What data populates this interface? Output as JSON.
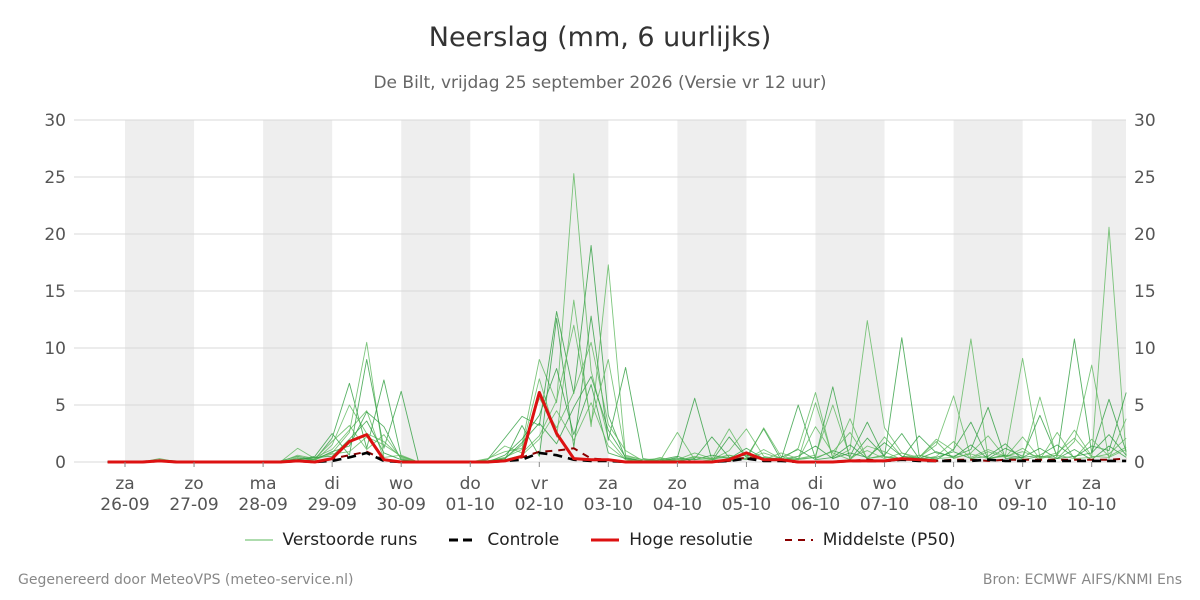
{
  "header": {
    "title": "Neerslag (mm, 6 uurlijks)",
    "subtitle": "De Bilt, vrijdag 25 september 2026 (Versie vr 12 uur)"
  },
  "footer": {
    "left": "Gegenereerd door MeteoVPS (meteo-service.nl)",
    "right": "Bron: ECMWF AIFS/KNMI Ens"
  },
  "legend": [
    {
      "label": "Verstoorde runs",
      "color": "#5cb85c",
      "style": "thin"
    },
    {
      "label": "Controle",
      "color": "#000000",
      "style": "dashed"
    },
    {
      "label": "Hoge resolutie",
      "color": "#dd1111",
      "style": "solid"
    },
    {
      "label": "Middelste (P50)",
      "color": "#8b0000",
      "style": "dashed"
    }
  ],
  "chart_data": {
    "type": "line",
    "title": "Neerslag (mm, 6 uurlijks)",
    "ylim": [
      0,
      30
    ],
    "yticks": [
      0,
      5,
      10,
      15,
      20,
      25,
      30
    ],
    "y_axis_both_sides": true,
    "x_axis": {
      "start": "2026-09-26 00:00",
      "end": "2026-10-11 00:00",
      "step_hours": 6,
      "tick_labels": [
        {
          "day": "za",
          "date": "26-09"
        },
        {
          "day": "zo",
          "date": "27-09"
        },
        {
          "day": "ma",
          "date": "28-09"
        },
        {
          "day": "di",
          "date": "29-09"
        },
        {
          "day": "wo",
          "date": "30-09"
        },
        {
          "day": "do",
          "date": "01-10"
        },
        {
          "day": "vr",
          "date": "02-10"
        },
        {
          "day": "za",
          "date": "03-10"
        },
        {
          "day": "zo",
          "date": "04-10"
        },
        {
          "day": "ma",
          "date": "05-10"
        },
        {
          "day": "di",
          "date": "06-10"
        },
        {
          "day": "wo",
          "date": "07-10"
        },
        {
          "day": "do",
          "date": "08-10"
        },
        {
          "day": "vr",
          "date": "09-10"
        },
        {
          "day": "za",
          "date": "10-10"
        }
      ],
      "shaded_days": [
        "2026-09-26",
        "2026-09-28",
        "2026-09-30",
        "2026-10-02",
        "2026-10-04",
        "2026-10-06",
        "2026-10-08",
        "2026-10-10"
      ]
    },
    "grid": true,
    "legend_position": "bottom",
    "series": [
      {
        "name": "Hoge resolutie",
        "role": "hres",
        "start": "2026-09-25 18:00",
        "values": [
          0,
          0,
          0,
          0.1,
          0,
          0,
          0,
          0,
          0,
          0,
          0,
          0.1,
          0,
          0.3,
          1.8,
          2.4,
          0.2,
          0,
          0,
          0,
          0,
          0,
          0,
          0.1,
          0.5,
          6.1,
          2.5,
          0.3,
          0.2,
          0.2,
          0,
          0,
          0,
          0,
          0,
          0,
          0.2,
          0.8,
          0.2,
          0.2,
          0,
          0,
          0,
          0.1,
          0.1,
          0.1,
          0.3,
          0.2,
          0.1
        ]
      },
      {
        "name": "Controle",
        "role": "control",
        "start": "2026-09-25 18:00",
        "values": [
          0,
          0,
          0,
          0.1,
          0,
          0,
          0,
          0,
          0,
          0,
          0,
          0.1,
          0,
          0.1,
          0.4,
          0.8,
          0.1,
          0,
          0,
          0,
          0,
          0,
          0,
          0.1,
          0.2,
          0.8,
          0.6,
          0.2,
          0.1,
          0.1,
          0,
          0,
          0,
          0,
          0,
          0,
          0.1,
          0.3,
          0.1,
          0.1,
          0,
          0,
          0,
          0.1,
          0.1,
          0.1,
          0.2,
          0.1,
          0.1,
          0.1,
          0.1,
          0.2,
          0.1,
          0.1,
          0.1,
          0.1,
          0.1,
          0.1,
          0.1,
          0.1,
          0.1
        ]
      },
      {
        "name": "Middelste (P50)",
        "role": "median",
        "start": "2026-09-25 18:00",
        "values": [
          0,
          0,
          0,
          0.1,
          0,
          0,
          0,
          0,
          0,
          0,
          0,
          0.1,
          0,
          0.3,
          0.6,
          0.9,
          0.2,
          0,
          0,
          0,
          0,
          0,
          0,
          0.1,
          0.4,
          0.9,
          1.0,
          1.2,
          0.3,
          0.2,
          0,
          0,
          0,
          0,
          0,
          0,
          0.1,
          0.4,
          0.2,
          0.2,
          0,
          0,
          0,
          0.1,
          0.2,
          0.1,
          0.2,
          0.2,
          0.1,
          0.2,
          0.2,
          0.1,
          0.2,
          0.2,
          0.2,
          0.2,
          0.2,
          0.2,
          0.2,
          0.3,
          0.2
        ]
      },
      {
        "name": "Verstoorde runs",
        "role": "ensemble",
        "start": "2026-09-25 18:00",
        "members": [
          [
            0,
            0,
            0,
            0.3,
            0,
            0,
            0,
            0,
            0,
            0,
            0,
            0.2,
            0.4,
            1.1,
            2.8,
            4.5,
            0.3,
            0,
            0,
            0,
            0,
            0,
            0.1,
            0.3,
            1.5,
            9.0,
            5.2,
            25.3,
            8.0,
            2.1,
            0.2,
            0,
            0.4,
            0,
            0,
            0.2,
            1.0,
            2.9,
            0.5,
            0.2,
            1.2,
            6.1,
            0.3,
            1.1,
            12.4,
            3.0,
            0.8,
            0.4,
            2.0,
            1.0,
            10.8,
            0.3,
            0.6,
            9.1,
            0.4,
            0.8,
            2.1,
            0.4,
            20.6,
            0.5,
            1.1
          ],
          [
            0,
            0,
            0,
            0.1,
            0,
            0,
            0,
            0,
            0,
            0,
            0.1,
            0.5,
            0.2,
            2.1,
            6.9,
            1.2,
            7.2,
            0.5,
            0,
            0,
            0,
            0,
            0.2,
            2.1,
            4.0,
            3.2,
            13.2,
            6.0,
            19.0,
            4.1,
            0.3,
            0.1,
            0.2,
            0.5,
            0,
            0.1,
            2.2,
            0.4,
            2.9,
            0.2,
            0.3,
            0.4,
            6.6,
            0.2,
            2.1,
            0.5,
            10.9,
            0.6,
            0.2,
            1.1,
            3.5,
            0.3,
            1.2,
            0.5,
            4.1,
            0.5,
            10.8,
            0.8,
            5.5,
            0.9,
            0.4
          ],
          [
            0,
            0,
            0,
            0.2,
            0.1,
            0,
            0,
            0,
            0,
            0,
            0,
            1.2,
            0.3,
            0.8,
            2.6,
            10.5,
            0.4,
            0.6,
            0,
            0,
            0,
            0,
            0.3,
            0.9,
            1.2,
            7.3,
            2.2,
            14.2,
            3.1,
            17.3,
            0.5,
            0.2,
            0.1,
            2.6,
            0.2,
            0.3,
            0.4,
            0.2,
            3.0,
            0.5,
            0.2,
            5.2,
            0.4,
            3.8,
            0.2,
            2.2,
            0.5,
            0.4,
            1.5,
            5.8,
            0.4,
            1.1,
            0.5,
            0.2,
            5.7,
            0.3,
            1.8,
            8.5,
            0.3,
            3.8,
            0.6
          ],
          [
            0,
            0,
            0,
            0.1,
            0,
            0,
            0,
            0,
            0,
            0,
            0,
            0.2,
            0.5,
            2.5,
            0.6,
            9.0,
            1.2,
            6.2,
            0,
            0,
            0,
            0,
            0.1,
            0.2,
            3.2,
            0.5,
            12.6,
            1.3,
            12.8,
            1.9,
            8.3,
            0.3,
            0.1,
            0.4,
            5.6,
            0.2,
            0.1,
            0.3,
            0.4,
            0.2,
            5.0,
            0.3,
            1.0,
            0.5,
            3.5,
            0.4,
            0.3,
            2.3,
            0.8,
            0.5,
            1.1,
            4.8,
            0.3,
            0.4,
            0.6,
            1.5,
            0.4,
            1.4,
            1.0,
            6.1,
            2.0
          ],
          [
            0,
            0,
            0,
            0.2,
            0,
            0,
            0,
            0,
            0,
            0,
            0,
            0.4,
            0.1,
            1.5,
            5.0,
            2.5,
            1.8,
            0.4,
            0,
            0,
            0,
            0,
            0.1,
            0.4,
            1.1,
            5.6,
            3.0,
            6.1,
            10.5,
            3.3,
            1.0,
            0.1,
            0,
            0.2,
            0.8,
            0.3,
            0.6,
            0.2,
            1.1,
            0.3,
            0.2,
            3.1,
            0.8,
            0.2,
            1.4,
            0.9,
            0.2,
            0.4,
            1.8,
            0.3,
            0.8,
            2.3,
            0.4,
            1.2,
            0.2,
            2.6,
            0.3,
            2.0,
            0.5,
            1.3,
            0.4
          ],
          [
            0,
            0,
            0,
            0.1,
            0,
            0,
            0,
            0,
            0,
            0,
            0,
            0.3,
            0.2,
            0.9,
            1.4,
            4.4,
            3.1,
            0.2,
            0,
            0,
            0,
            0,
            0,
            0.6,
            2.0,
            4.1,
            8.2,
            2.4,
            6.8,
            0.8,
            0.3,
            0.1,
            0.2,
            0.1,
            0.3,
            2.2,
            0.4,
            0.6,
            0.2,
            0.4,
            1.1,
            0.2,
            0.4,
            1.5,
            0.3,
            0.6,
            2.5,
            0.3,
            0.4,
            0.9,
            0.3,
            0.5,
            1.6,
            0.2,
            0.5,
            0.3,
            1.1,
            0.2,
            1.4,
            0.4,
            0.6
          ],
          [
            0,
            0,
            0,
            0.2,
            0,
            0,
            0,
            0,
            0,
            0,
            0,
            0.6,
            0.3,
            1.8,
            3.2,
            1.1,
            2.4,
            0.3,
            0,
            0,
            0,
            0,
            0.2,
            1.4,
            0.8,
            2.3,
            5.4,
            12.0,
            3.5,
            9.0,
            0.6,
            0.2,
            0.3,
            0.2,
            0.4,
            0.3,
            2.9,
            0.4,
            0.2,
            0.8,
            0.3,
            0.6,
            5.0,
            0.4,
            1.0,
            0.3,
            0.8,
            0.2,
            0.5,
            1.8,
            0.3,
            0.9,
            0.4,
            2.2,
            0.3,
            0.6,
            2.8,
            0.5,
            0.4,
            1.1,
            0.3
          ],
          [
            0,
            0,
            0,
            0.1,
            0,
            0,
            0,
            0,
            0,
            0,
            0,
            0.2,
            0.4,
            0.5,
            2.0,
            3.6,
            0.8,
            0.2,
            0,
            0,
            0,
            0,
            0.1,
            0.3,
            1.7,
            3.4,
            1.6,
            4.8,
            7.5,
            2.8,
            0.4,
            0.1,
            0.1,
            0.3,
            0.2,
            0.6,
            0.3,
            1.2,
            0.3,
            0.2,
            0.5,
            1.4,
            0.3,
            0.8,
            0.4,
            1.7,
            0.5,
            0.3,
            0.9,
            0.4,
            1.5,
            0.3,
            0.6,
            0.4,
            1.2,
            0.3,
            0.5,
            0.8,
            2.4,
            0.6,
            0.5
          ],
          [
            0,
            0,
            0,
            0.1,
            0,
            0,
            0,
            0,
            0,
            0,
            0,
            0.1,
            0.2,
            0.7,
            0.9,
            2.2,
            1.5,
            0.5,
            0,
            0,
            0,
            0,
            0.1,
            0.2,
            0.6,
            2.0,
            4.5,
            1.9,
            5.2,
            1.4,
            0.2,
            0.1,
            0.2,
            0.1,
            0.5,
            0.2,
            0.6,
            0.3,
            0.8,
            0.3,
            0.2,
            0.4,
            0.9,
            2.6,
            0.3,
            0.5,
            0.3,
            0.6,
            0.3,
            0.4,
            0.7,
            0.3,
            0.5,
            0.9,
            0.4,
            0.6,
            0.3,
            0.4,
            0.7,
            2.1,
            0.4
          ]
        ]
      }
    ]
  }
}
